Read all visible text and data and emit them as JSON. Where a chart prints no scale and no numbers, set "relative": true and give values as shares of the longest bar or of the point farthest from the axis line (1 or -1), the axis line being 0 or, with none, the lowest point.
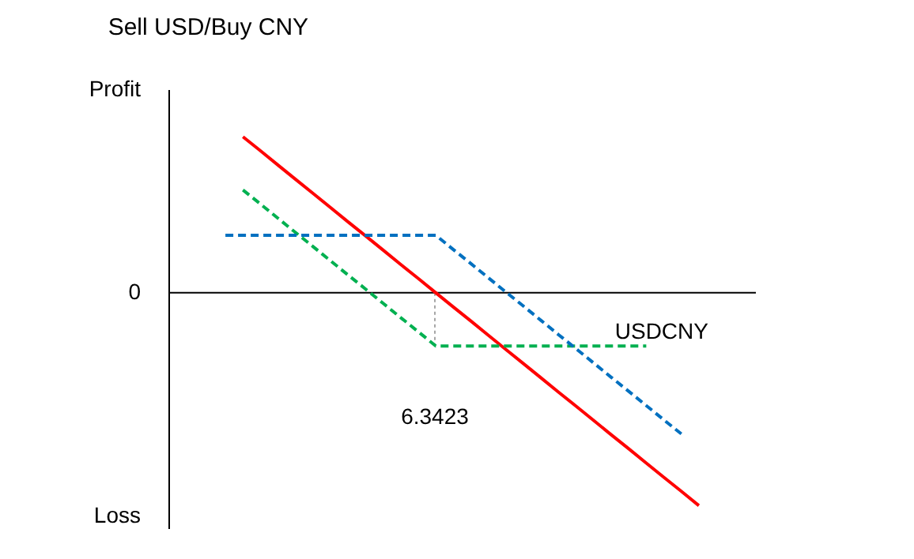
{
  "chart_data": {
    "type": "line",
    "title": "Sell USD/Buy CNY",
    "xlabel": "USDCNY",
    "relative": true,
    "categories": [
      null,
      null,
      null,
      null,
      null,
      null,
      null,
      null,
      null,
      null,
      null,
      null,
      null,
      null,
      null,
      null,
      null,
      null,
      null,
      null,
      null,
      null,
      null,
      null,
      null,
      null,
      null,
      null
    ],
    "series": [
      {
        "color": "#ff0000",
        "line_style": "solid",
        "values": [
          null,
          0.733,
          0.667,
          0.6,
          0.533,
          0.467,
          0.4,
          0.333,
          0.267,
          0.2,
          0.133,
          0.067,
          0,
          -0.067,
          -0.133,
          -0.2,
          -0.267,
          -0.333,
          -0.4,
          -0.467,
          -0.533,
          -0.6,
          -0.667,
          -0.733,
          -0.8,
          -0.867,
          -0.933,
          -1
        ]
      },
      {
        "color": "#00b050",
        "line_style": "dashed",
        "values": [
          null,
          0.483,
          0.417,
          0.35,
          0.283,
          0.217,
          0.15,
          0.083,
          0.017,
          -0.05,
          -0.117,
          -0.183,
          -0.25,
          -0.25,
          -0.25,
          -0.25,
          -0.25,
          -0.25,
          -0.25,
          -0.25,
          -0.25,
          -0.25,
          -0.25,
          -0.25,
          -0.25,
          null,
          null,
          null
        ]
      },
      {
        "color": "#0070c0",
        "line_style": "dashed",
        "values": [
          0.27,
          0.27,
          0.27,
          0.27,
          0.27,
          0.27,
          0.27,
          0.27,
          0.27,
          0.27,
          0.27,
          0.27,
          0.27,
          0.203,
          0.137,
          0.07,
          0.003,
          -0.063,
          -0.13,
          -0.197,
          -0.263,
          -0.33,
          -0.397,
          -0.463,
          -0.53,
          -0.597,
          -0.663,
          null
        ]
      }
    ],
    "annotations": [
      "Profit",
      "0",
      "Loss",
      "6.3423"
    ]
  }
}
